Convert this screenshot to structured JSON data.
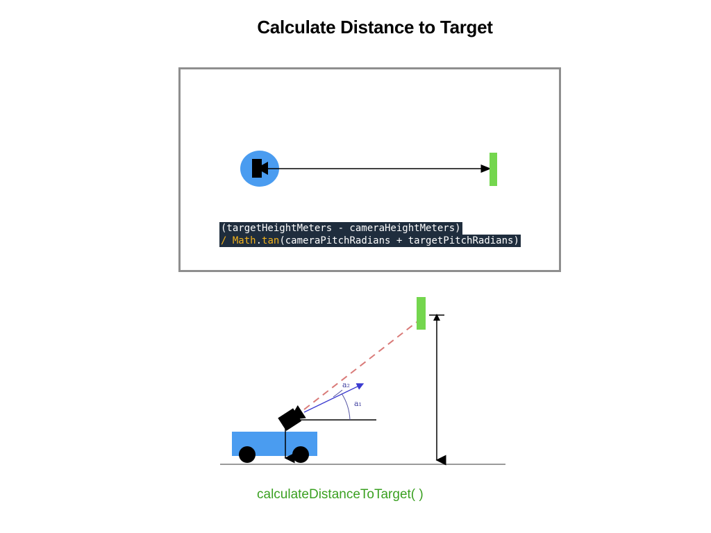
{
  "title": "Calculate Distance to Target",
  "code": {
    "line1": "(targetHeightMeters - cameraHeightMeters)",
    "line2_op": "/ ",
    "line2_class": "Math",
    "line2_dot": ".",
    "line2_fn": "tan",
    "line2_rest": "(cameraPitchRadians + targetPitchRadians)"
  },
  "diagram": {
    "angle_a2_label": "a₂",
    "angle_a1_label": "a₁"
  },
  "function_label": "calculateDistanceToTarget( )",
  "colors": {
    "camera_blue": "#4a9cf0",
    "target_green": "#74d64e",
    "code_bg": "#1f2d3d",
    "code_yellow": "#f2b21c",
    "label_green": "#3aa021",
    "sight_line_red": "#d97a78",
    "angle_blue": "#4040c0"
  },
  "icons": [
    "camera-icon",
    "target-icon",
    "robot-icon"
  ]
}
